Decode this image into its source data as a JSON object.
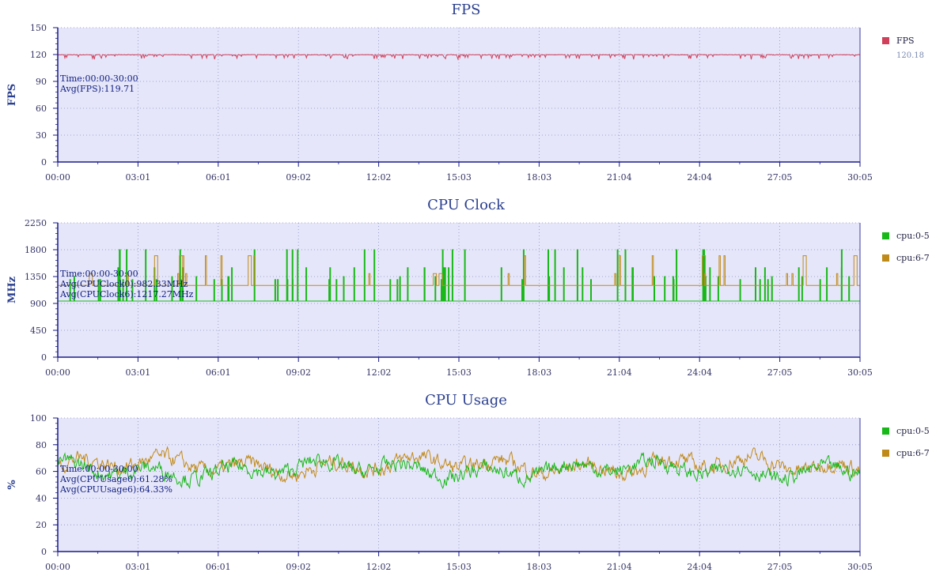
{
  "chart_data": [
    {
      "id": "fps",
      "type": "line",
      "title": "FPS",
      "ylabel": "FPS",
      "ylim": [
        0,
        150
      ],
      "yticks": [
        0,
        30,
        60,
        90,
        120,
        150
      ],
      "xlabels": [
        "00:00",
        "03:01",
        "06:01",
        "09:02",
        "12:02",
        "15:03",
        "18:03",
        "21:04",
        "24:04",
        "27:05",
        "30:05"
      ],
      "annotation": [
        "Time:00:00-30:00",
        "Avg(FPS):119.71"
      ],
      "series": [
        {
          "name": "FPS",
          "color": "#d0405a",
          "legend_value": "120.18",
          "mean": 119.7,
          "style": "fps"
        }
      ]
    },
    {
      "id": "cpuclock",
      "type": "line",
      "title": "CPU Clock",
      "ylabel": "MHz",
      "ylim": [
        0,
        2250
      ],
      "yticks": [
        0,
        450,
        900,
        1350,
        1800,
        2250
      ],
      "xlabels": [
        "00:00",
        "03:01",
        "06:01",
        "09:02",
        "12:02",
        "15:03",
        "18:03",
        "21:04",
        "24:04",
        "27:05",
        "30:05"
      ],
      "annotation": [
        "Time:00:00-30:00",
        "Avg(CPUClock0):982.33MHz",
        "Avg(CPUClock6):1217.27MHz"
      ],
      "series": [
        {
          "name": "cpu:0-5",
          "color": "#18b818",
          "base": 940,
          "spike_levels": [
            1300,
            1350,
            1500,
            1800
          ],
          "style": "clock"
        },
        {
          "name": "cpu:6-7",
          "color": "#c08a18",
          "base": 1200,
          "spike_levels": [
            1400,
            1700
          ],
          "style": "clock"
        }
      ]
    },
    {
      "id": "cpuusage",
      "type": "line",
      "title": "CPU Usage",
      "ylabel": "%",
      "ylim": [
        0,
        100
      ],
      "yticks": [
        0,
        20,
        40,
        60,
        80,
        100
      ],
      "xlabels": [
        "00:00",
        "03:01",
        "06:01",
        "09:02",
        "12:02",
        "15:03",
        "18:03",
        "21:04",
        "24:04",
        "27:05",
        "30:05"
      ],
      "annotation": [
        "Time:00:00-30:00",
        "Avg(CPUUsage0):61.28%",
        "Avg(CPUUsage6):64.33%"
      ],
      "series": [
        {
          "name": "cpu:6-7",
          "color": "#c08a18",
          "mean": 64.3,
          "style": "usage"
        },
        {
          "name": "cpu:0-5",
          "color": "#18b818",
          "mean": 61.3,
          "style": "usage"
        }
      ]
    }
  ]
}
